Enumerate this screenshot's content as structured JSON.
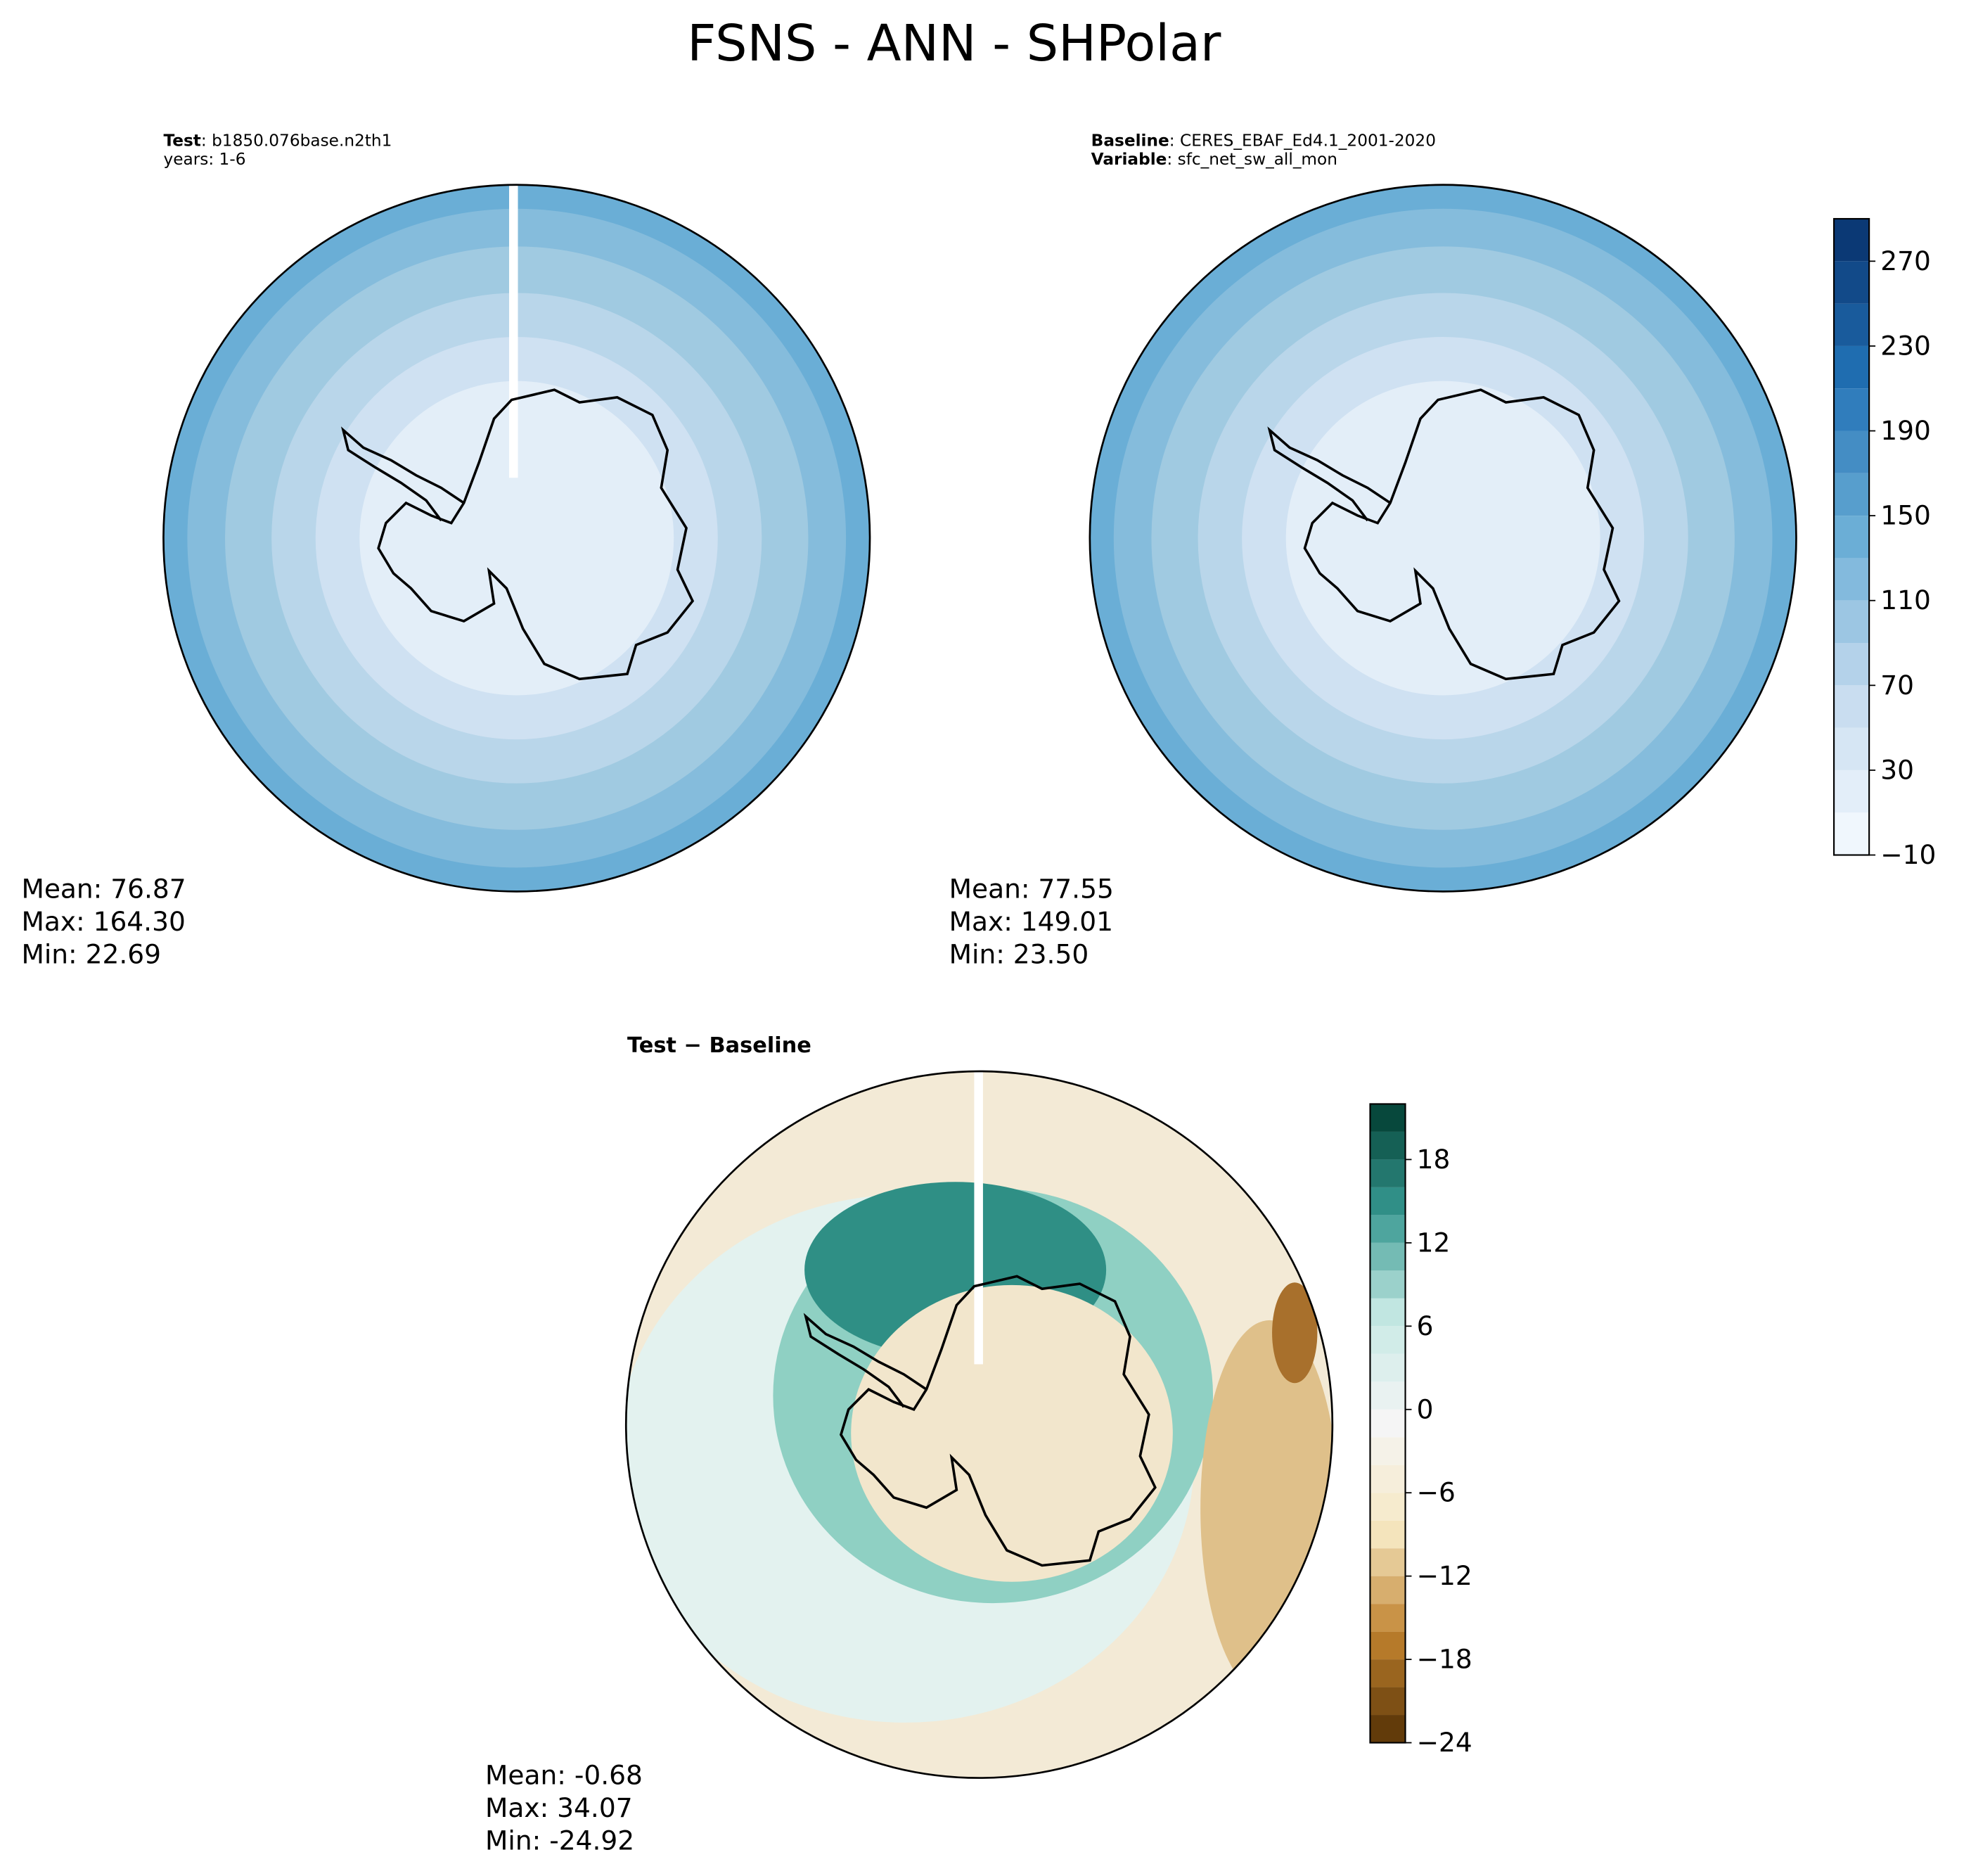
{
  "title": "FSNS - ANN - SHPolar",
  "panels": [
    {
      "header": [
        {
          "key": "Test",
          "value": ": b1850.076base.n2th1"
        },
        {
          "key": null,
          "value": "years: 1-6"
        }
      ],
      "stats": [
        "Mean: 76.87",
        "Max: 164.30",
        "Min: 22.69"
      ]
    },
    {
      "header": [
        {
          "key": "Baseline",
          "value": ": CERES_EBAF_Ed4.1_2001-2020"
        },
        {
          "key": "Variable",
          "value": ": sfc_net_sw_all_mon"
        }
      ],
      "stats": [
        "Mean: 77.55",
        "Max: 149.01",
        "Min: 23.50"
      ]
    },
    {
      "header": [
        {
          "key": "Test − Baseline",
          "value": null
        }
      ],
      "stats": [
        "Mean: -0.68",
        "Max: 34.07",
        "Min: -24.92"
      ]
    }
  ],
  "colorbars": [
    {
      "lim": [
        -10,
        290
      ],
      "step": 20,
      "colors": [
        "#f7fbff",
        "#c6dbef",
        "#6baed6",
        "#2171b5",
        "#08306b"
      ],
      "ticks": [
        {
          "value": -10,
          "label": "−10"
        },
        30,
        70,
        110,
        150,
        190,
        230,
        270
      ]
    },
    {
      "lim": [
        -24,
        22
      ],
      "step": 2,
      "colors": [
        "#543005",
        "#bf812d",
        "#f6e8c3",
        "#f5f5f5",
        "#c7eae5",
        "#35978f",
        "#003c30"
      ],
      "ticks": [
        {
          "value": -24,
          "label": "−24"
        },
        {
          "value": -18,
          "label": "−18"
        },
        {
          "value": -12,
          "label": "−12"
        },
        {
          "value": -6,
          "label": "−6"
        },
        0,
        6,
        12,
        18
      ]
    }
  ]
}
